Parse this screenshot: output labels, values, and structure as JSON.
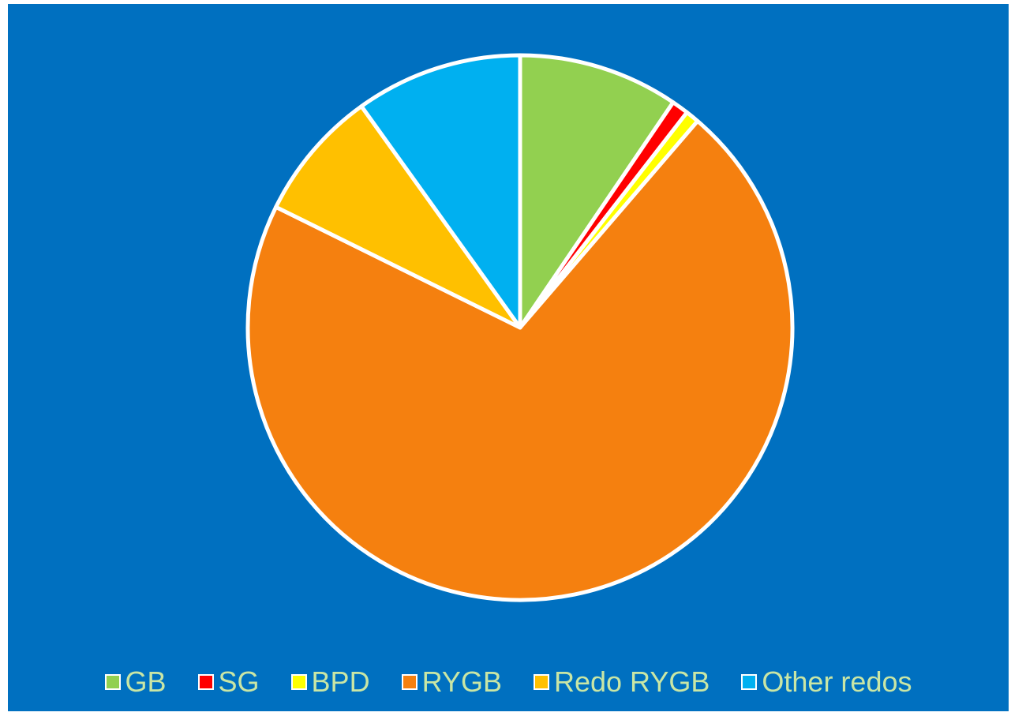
{
  "chart_data": {
    "type": "pie",
    "title": "",
    "start_angle_deg": 0,
    "direction": "clockwise",
    "slices": [
      {
        "name": "GB",
        "value": 9.5,
        "color": "#92d050"
      },
      {
        "name": "SG",
        "value": 1.0,
        "color": "#ff0000"
      },
      {
        "name": "BPD",
        "value": 0.8,
        "color": "#ffff00"
      },
      {
        "name": "RYGB",
        "value": 71.0,
        "color": "#f5800f"
      },
      {
        "name": "Redo RYGB",
        "value": 7.8,
        "color": "#ffc000"
      },
      {
        "name": "Other redos",
        "value": 9.9,
        "color": "#00b0f0"
      }
    ],
    "legend": {
      "position": "bottom"
    },
    "background_color": "#0070c0",
    "slice_border_color": "#ffffff"
  }
}
